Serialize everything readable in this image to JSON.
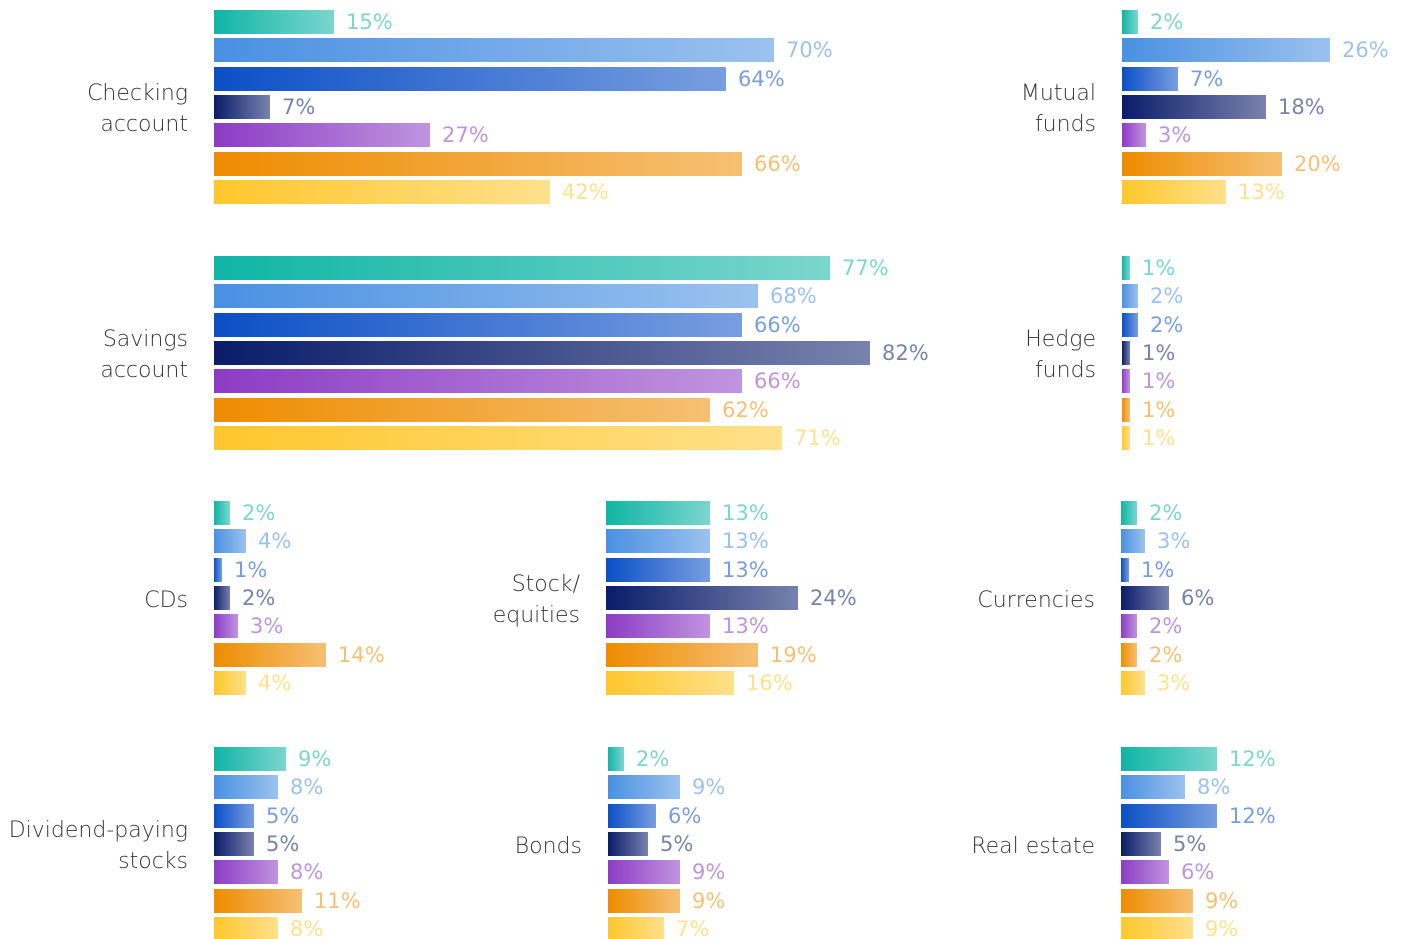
{
  "chart_data": {
    "type": "bar",
    "categories": [
      "Checking account",
      "Savings account",
      "Mutual funds",
      "Hedge funds",
      "CDs",
      "Stock/ equities",
      "Currencies",
      "Dividend-paying stocks",
      "Bonds",
      "Real estate"
    ],
    "series": [
      {
        "color": "#0fb5a5",
        "values": [
          15,
          77,
          2,
          1,
          2,
          13,
          2,
          9,
          2,
          12
        ],
        "value_labels": [
          "15%",
          "77%",
          "2%",
          "1%",
          "2%",
          "13%",
          "2%",
          "9%",
          "2%",
          "12%"
        ]
      },
      {
        "color": "#4a90e2",
        "values": [
          70,
          68,
          26,
          2,
          4,
          13,
          3,
          8,
          9,
          8
        ],
        "value_labels": [
          "70%",
          "68%",
          "26%",
          "2%",
          "4%",
          "13%",
          "3%",
          "8%",
          "9%",
          "8%"
        ]
      },
      {
        "color": "#0b4fc6",
        "values": [
          64,
          66,
          7,
          2,
          1,
          13,
          1,
          5,
          6,
          12
        ],
        "value_labels": [
          "64%",
          "66%",
          "7%",
          "2%",
          "1%",
          "13%",
          "1%",
          "5%",
          "6%",
          "12%"
        ]
      },
      {
        "color": "#0a1c6a",
        "values": [
          7,
          82,
          18,
          1,
          2,
          24,
          6,
          5,
          5,
          5
        ],
        "value_labels": [
          "7%",
          "82%",
          "18%",
          "1%",
          "2%",
          "24%",
          "6%",
          "5%",
          "5%",
          "5%"
        ]
      },
      {
        "color": "#8c3cc4",
        "values": [
          27,
          66,
          3,
          1,
          3,
          13,
          2,
          8,
          9,
          6
        ],
        "value_labels": [
          "27%",
          "66%",
          "3%",
          "1%",
          "3%",
          "13%",
          "2%",
          "8%",
          "9%",
          "6%"
        ]
      },
      {
        "color": "#ee8c00",
        "values": [
          66,
          62,
          20,
          1,
          14,
          19,
          2,
          11,
          9,
          9
        ],
        "value_labels": [
          "66%",
          "62%",
          "20%",
          "1%",
          "14%",
          "19%",
          "2%",
          "11%",
          "9%",
          "9%"
        ]
      },
      {
        "color": "#ffc72c",
        "values": [
          42,
          71,
          13,
          1,
          4,
          16,
          3,
          8,
          7,
          9
        ],
        "value_labels": [
          "42%",
          "71%",
          "13%",
          "1%",
          "4%",
          "16%",
          "3%",
          "8%",
          "7%",
          "9%"
        ]
      }
    ]
  }
}
